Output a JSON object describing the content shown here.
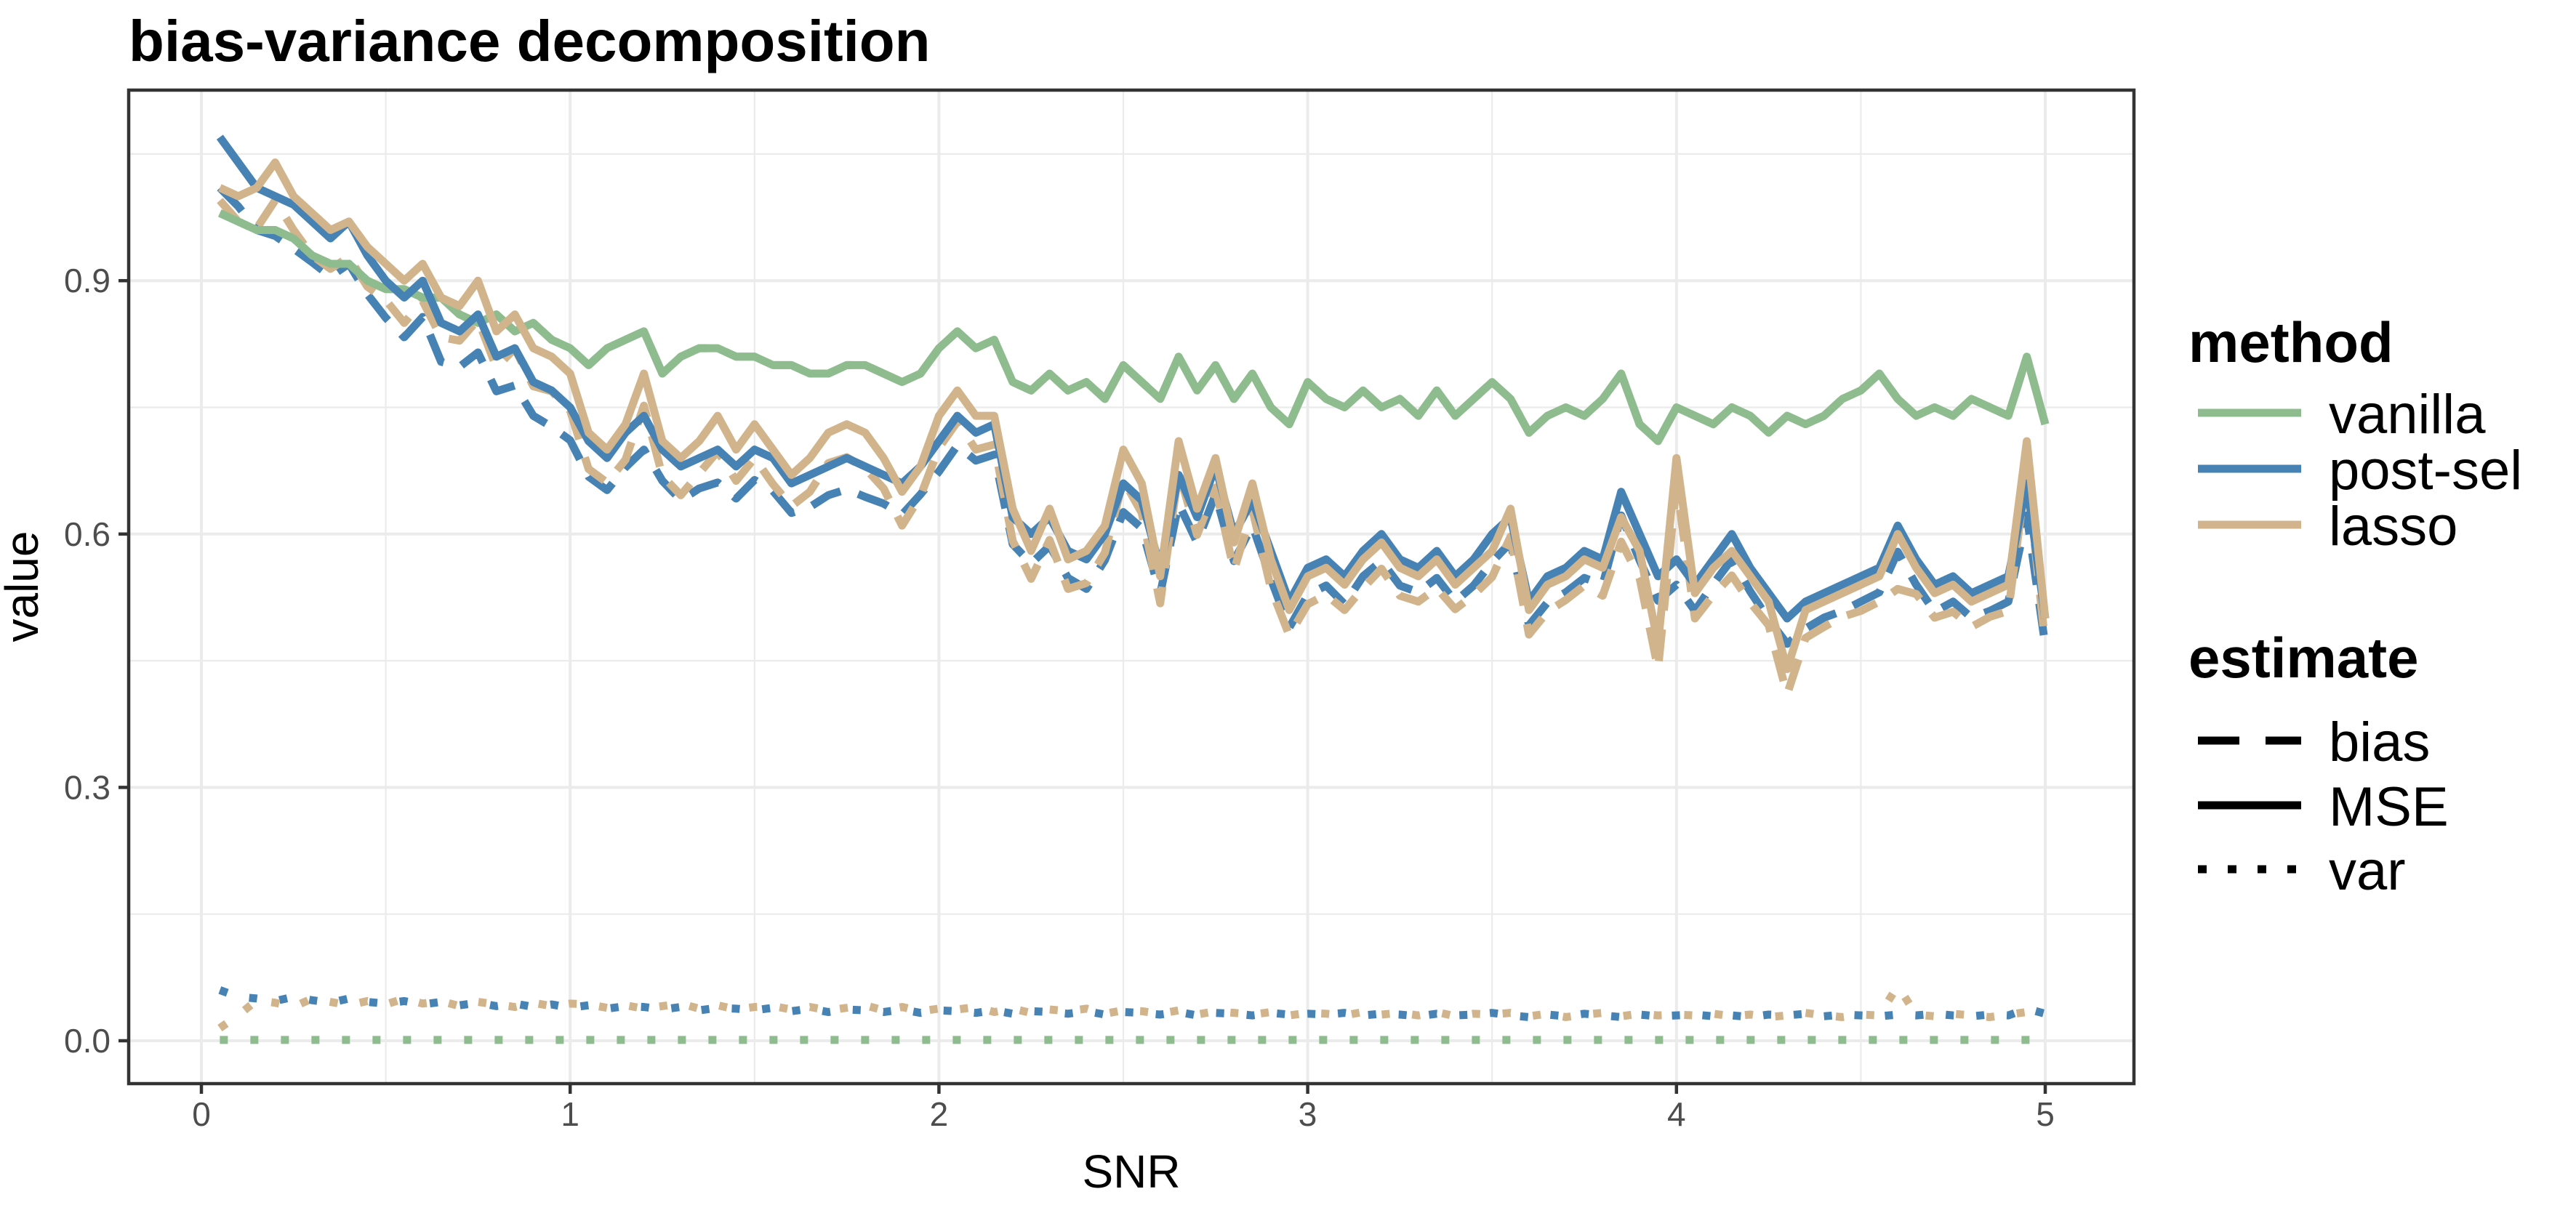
{
  "title": "bias-variance decomposition",
  "axes": {
    "x": {
      "label": "SNR",
      "tick_values": [
        0,
        1,
        2,
        3,
        4,
        5
      ],
      "tick_labels": [
        "0",
        "1",
        "2",
        "3",
        "4",
        "5"
      ],
      "minor_ticks": [
        0.5,
        1.5,
        2.5,
        3.5,
        4.5
      ],
      "range": [
        -0.2,
        5.24
      ]
    },
    "y": {
      "label": "value",
      "tick_values": [
        0,
        0.3,
        0.6,
        0.9
      ],
      "tick_labels": [
        "0.0",
        "0.3",
        "0.6",
        "0.9"
      ],
      "minor_ticks": [
        0.15,
        0.45,
        0.75,
        1.05
      ],
      "range": [
        -0.05,
        1.126
      ]
    },
    "grid": "on",
    "panel_border_color": "#333333",
    "grid_color": "#ebebeb",
    "tick_label_color": "#4d4d4d"
  },
  "legend": {
    "position": "right",
    "method": {
      "title": "method",
      "items": [
        {
          "label": "vanilla",
          "color": "#8FBC8F"
        },
        {
          "label": "post-sel",
          "color": "#4682B4"
        },
        {
          "label": "lasso",
          "color": "#D2B48C"
        }
      ]
    },
    "estimate": {
      "title": "estimate",
      "items": [
        {
          "label": "bias",
          "linestyle": "dashed"
        },
        {
          "label": "MSE",
          "linestyle": "solid"
        },
        {
          "label": "var",
          "linestyle": "dotted"
        }
      ]
    }
  },
  "chart_data": {
    "type": "line",
    "title": "bias-variance decomposition",
    "xlabel": "SNR",
    "ylabel": "value",
    "xlim": [
      -0.2,
      5.24
    ],
    "ylim": [
      -0.05,
      1.126
    ],
    "x": [
      0.05,
      0.1,
      0.15,
      0.2,
      0.25,
      0.3,
      0.35,
      0.4,
      0.45,
      0.5,
      0.55,
      0.6,
      0.65,
      0.7,
      0.75,
      0.8,
      0.85,
      0.9,
      0.95,
      1,
      1.05,
      1.1,
      1.15,
      1.2,
      1.25,
      1.3,
      1.35,
      1.4,
      1.45,
      1.5,
      1.55,
      1.6,
      1.65,
      1.7,
      1.75,
      1.8,
      1.85,
      1.9,
      1.95,
      2,
      2.05,
      2.1,
      2.15,
      2.2,
      2.25,
      2.3,
      2.35,
      2.4,
      2.45,
      2.5,
      2.55,
      2.6,
      2.65,
      2.7,
      2.75,
      2.8,
      2.85,
      2.9,
      2.95,
      3,
      3.05,
      3.1,
      3.15,
      3.2,
      3.25,
      3.3,
      3.35,
      3.4,
      3.45,
      3.5,
      3.55,
      3.6,
      3.65,
      3.7,
      3.75,
      3.8,
      3.85,
      3.9,
      3.95,
      4,
      4.05,
      4.1,
      4.15,
      4.2,
      4.25,
      4.3,
      4.35,
      4.4,
      4.45,
      4.5,
      4.55,
      4.6,
      4.65,
      4.7,
      4.75,
      4.8,
      4.85,
      4.9,
      4.95,
      5
    ],
    "series": [
      {
        "method": "vanilla",
        "estimate": "bias",
        "linestyle": "dashed",
        "color": "#8FBC8F",
        "values": [
          0.98,
          0.97,
          0.96,
          0.96,
          0.95,
          0.93,
          0.92,
          0.92,
          0.9,
          0.89,
          0.89,
          0.88,
          0.88,
          0.86,
          0.85,
          0.86,
          0.84,
          0.85,
          0.83,
          0.82,
          0.8,
          0.82,
          0.83,
          0.84,
          0.79,
          0.81,
          0.82,
          0.82,
          0.81,
          0.81,
          0.8,
          0.8,
          0.79,
          0.79,
          0.8,
          0.8,
          0.79,
          0.78,
          0.79,
          0.82,
          0.84,
          0.82,
          0.83,
          0.78,
          0.77,
          0.79,
          0.77,
          0.78,
          0.76,
          0.8,
          0.78,
          0.76,
          0.81,
          0.77,
          0.8,
          0.76,
          0.79,
          0.75,
          0.73,
          0.78,
          0.76,
          0.75,
          0.77,
          0.75,
          0.76,
          0.74,
          0.77,
          0.74,
          0.76,
          0.78,
          0.76,
          0.72,
          0.74,
          0.75,
          0.74,
          0.76,
          0.79,
          0.73,
          0.71,
          0.75,
          0.74,
          0.73,
          0.75,
          0.74,
          0.72,
          0.74,
          0.73,
          0.74,
          0.76,
          0.77,
          0.79,
          0.76,
          0.74,
          0.75,
          0.74,
          0.76,
          0.75,
          0.74,
          0.81,
          0.73
        ]
      },
      {
        "method": "post-sel",
        "estimate": "bias",
        "linestyle": "dashed",
        "color": "#4682B4",
        "values": [
          1.01,
          0.988,
          0.96,
          0.953,
          0.938,
          0.922,
          0.905,
          0.92,
          0.884,
          0.856,
          0.833,
          0.857,
          0.804,
          0.798,
          0.815,
          0.769,
          0.776,
          0.74,
          0.727,
          0.711,
          0.668,
          0.652,
          0.679,
          0.7,
          0.663,
          0.64,
          0.654,
          0.661,
          0.642,
          0.664,
          0.651,
          0.625,
          0.632,
          0.646,
          0.653,
          0.644,
          0.636,
          0.623,
          0.647,
          0.674,
          0.705,
          0.687,
          0.694,
          0.588,
          0.565,
          0.586,
          0.548,
          0.535,
          0.569,
          0.626,
          0.607,
          0.529,
          0.636,
          0.59,
          0.647,
          0.568,
          0.61,
          0.547,
          0.489,
          0.528,
          0.539,
          0.517,
          0.55,
          0.568,
          0.539,
          0.531,
          0.548,
          0.52,
          0.539,
          0.567,
          0.59,
          0.492,
          0.519,
          0.531,
          0.548,
          0.54,
          0.622,
          0.569,
          0.521,
          0.54,
          0.509,
          0.541,
          0.57,
          0.532,
          0.499,
          0.47,
          0.488,
          0.501,
          0.509,
          0.52,
          0.531,
          0.579,
          0.54,
          0.508,
          0.52,
          0.501,
          0.509,
          0.52,
          0.622,
          0.468
        ]
      },
      {
        "method": "lasso",
        "estimate": "bias",
        "linestyle": "dashed",
        "color": "#D2B48C",
        "values": [
          0.995,
          0.97,
          0.962,
          0.995,
          0.96,
          0.93,
          0.914,
          0.928,
          0.893,
          0.877,
          0.85,
          0.876,
          0.833,
          0.829,
          0.854,
          0.797,
          0.82,
          0.775,
          0.769,
          0.746,
          0.677,
          0.661,
          0.688,
          0.752,
          0.669,
          0.646,
          0.672,
          0.698,
          0.663,
          0.69,
          0.659,
          0.633,
          0.65,
          0.684,
          0.691,
          0.678,
          0.654,
          0.61,
          0.645,
          0.702,
          0.733,
          0.7,
          0.706,
          0.592,
          0.547,
          0.593,
          0.535,
          0.542,
          0.578,
          0.664,
          0.625,
          0.518,
          0.674,
          0.599,
          0.655,
          0.557,
          0.629,
          0.536,
          0.48,
          0.517,
          0.528,
          0.51,
          0.536,
          0.559,
          0.527,
          0.52,
          0.536,
          0.511,
          0.528,
          0.549,
          0.597,
          0.481,
          0.508,
          0.522,
          0.539,
          0.527,
          0.591,
          0.548,
          0.44,
          0.659,
          0.5,
          0.528,
          0.551,
          0.519,
          0.492,
          0.41,
          0.477,
          0.49,
          0.502,
          0.509,
          0.52,
          0.535,
          0.529,
          0.501,
          0.508,
          0.49,
          0.502,
          0.509,
          0.676,
          0.47
        ]
      },
      {
        "method": "vanilla",
        "estimate": "MSE",
        "linestyle": "solid",
        "color": "#8FBC8F",
        "values": [
          0.98,
          0.97,
          0.96,
          0.96,
          0.95,
          0.93,
          0.92,
          0.92,
          0.9,
          0.89,
          0.89,
          0.88,
          0.88,
          0.86,
          0.85,
          0.86,
          0.84,
          0.85,
          0.83,
          0.82,
          0.8,
          0.82,
          0.83,
          0.84,
          0.79,
          0.81,
          0.82,
          0.82,
          0.81,
          0.81,
          0.8,
          0.8,
          0.79,
          0.79,
          0.8,
          0.8,
          0.79,
          0.78,
          0.79,
          0.82,
          0.84,
          0.82,
          0.83,
          0.78,
          0.77,
          0.79,
          0.77,
          0.78,
          0.76,
          0.8,
          0.78,
          0.76,
          0.81,
          0.77,
          0.8,
          0.76,
          0.79,
          0.75,
          0.73,
          0.78,
          0.76,
          0.75,
          0.77,
          0.75,
          0.76,
          0.74,
          0.77,
          0.74,
          0.76,
          0.78,
          0.76,
          0.72,
          0.74,
          0.75,
          0.74,
          0.76,
          0.79,
          0.73,
          0.71,
          0.75,
          0.74,
          0.73,
          0.75,
          0.74,
          0.72,
          0.74,
          0.73,
          0.74,
          0.76,
          0.77,
          0.79,
          0.76,
          0.74,
          0.75,
          0.74,
          0.76,
          0.75,
          0.74,
          0.81,
          0.73
        ]
      },
      {
        "method": "post-sel",
        "estimate": "MSE",
        "linestyle": "solid",
        "color": "#4682B4",
        "values": [
          1.07,
          1.04,
          1.01,
          1.0,
          0.99,
          0.97,
          0.95,
          0.97,
          0.93,
          0.9,
          0.88,
          0.9,
          0.85,
          0.84,
          0.86,
          0.81,
          0.82,
          0.78,
          0.77,
          0.75,
          0.71,
          0.69,
          0.72,
          0.74,
          0.7,
          0.68,
          0.69,
          0.7,
          0.68,
          0.7,
          0.69,
          0.66,
          0.67,
          0.68,
          0.69,
          0.68,
          0.67,
          0.66,
          0.68,
          0.71,
          0.74,
          0.72,
          0.73,
          0.62,
          0.6,
          0.62,
          0.58,
          0.57,
          0.6,
          0.66,
          0.64,
          0.56,
          0.67,
          0.62,
          0.68,
          0.6,
          0.64,
          0.58,
          0.52,
          0.56,
          0.57,
          0.55,
          0.58,
          0.6,
          0.57,
          0.56,
          0.58,
          0.55,
          0.57,
          0.6,
          0.62,
          0.52,
          0.55,
          0.56,
          0.58,
          0.57,
          0.65,
          0.6,
          0.55,
          0.57,
          0.54,
          0.57,
          0.6,
          0.56,
          0.53,
          0.5,
          0.52,
          0.53,
          0.54,
          0.55,
          0.56,
          0.61,
          0.57,
          0.54,
          0.55,
          0.53,
          0.54,
          0.55,
          0.66,
          0.5
        ]
      },
      {
        "method": "lasso",
        "estimate": "MSE",
        "linestyle": "solid",
        "color": "#D2B48C",
        "values": [
          1.01,
          1.0,
          1.01,
          1.04,
          1.0,
          0.98,
          0.96,
          0.97,
          0.94,
          0.92,
          0.9,
          0.92,
          0.88,
          0.87,
          0.9,
          0.84,
          0.86,
          0.82,
          0.81,
          0.79,
          0.72,
          0.7,
          0.73,
          0.79,
          0.71,
          0.69,
          0.71,
          0.74,
          0.7,
          0.73,
          0.7,
          0.67,
          0.69,
          0.72,
          0.73,
          0.72,
          0.69,
          0.65,
          0.68,
          0.74,
          0.77,
          0.74,
          0.74,
          0.63,
          0.58,
          0.63,
          0.57,
          0.58,
          0.61,
          0.7,
          0.66,
          0.55,
          0.71,
          0.63,
          0.69,
          0.59,
          0.66,
          0.57,
          0.51,
          0.55,
          0.56,
          0.54,
          0.57,
          0.59,
          0.56,
          0.55,
          0.57,
          0.54,
          0.56,
          0.58,
          0.63,
          0.51,
          0.54,
          0.55,
          0.57,
          0.56,
          0.62,
          0.58,
          0.47,
          0.69,
          0.53,
          0.56,
          0.58,
          0.55,
          0.52,
          0.44,
          0.51,
          0.52,
          0.53,
          0.54,
          0.55,
          0.6,
          0.56,
          0.53,
          0.54,
          0.52,
          0.53,
          0.54,
          0.71,
          0.5
        ]
      },
      {
        "method": "vanilla",
        "estimate": "var",
        "linestyle": "dotted",
        "color": "#8FBC8F",
        "values": [
          0.001,
          0.001,
          0.001,
          0.001,
          0.001,
          0.001,
          0.001,
          0.001,
          0.001,
          0.001,
          0.001,
          0.001,
          0.001,
          0.001,
          0.001,
          0.001,
          0.001,
          0.001,
          0.001,
          0.001,
          0.001,
          0.001,
          0.001,
          0.001,
          0.001,
          0.001,
          0.001,
          0.001,
          0.001,
          0.001,
          0.001,
          0.001,
          0.001,
          0.001,
          0.001,
          0.001,
          0.001,
          0.001,
          0.001,
          0.001,
          0.001,
          0.001,
          0.001,
          0.001,
          0.001,
          0.001,
          0.001,
          0.001,
          0.001,
          0.001,
          0.001,
          0.001,
          0.001,
          0.001,
          0.001,
          0.001,
          0.001,
          0.001,
          0.001,
          0.001,
          0.001,
          0.001,
          0.001,
          0.001,
          0.001,
          0.001,
          0.001,
          0.001,
          0.001,
          0.001,
          0.001,
          0.001,
          0.001,
          0.001,
          0.001,
          0.001,
          0.001,
          0.001,
          0.001,
          0.001,
          0.001,
          0.001,
          0.001,
          0.001,
          0.001,
          0.001,
          0.001,
          0.001,
          0.001,
          0.001,
          0.001,
          0.001,
          0.001,
          0.001,
          0.001,
          0.001,
          0.001,
          0.001,
          0.001,
          0.001
        ]
      },
      {
        "method": "post-sel",
        "estimate": "var",
        "linestyle": "dotted",
        "color": "#4682B4",
        "values": [
          0.06,
          0.052,
          0.05,
          0.047,
          0.052,
          0.048,
          0.045,
          0.05,
          0.046,
          0.044,
          0.047,
          0.043,
          0.046,
          0.042,
          0.045,
          0.041,
          0.044,
          0.04,
          0.043,
          0.039,
          0.042,
          0.038,
          0.041,
          0.04,
          0.037,
          0.04,
          0.036,
          0.039,
          0.038,
          0.036,
          0.039,
          0.035,
          0.038,
          0.034,
          0.037,
          0.036,
          0.034,
          0.037,
          0.033,
          0.036,
          0.035,
          0.033,
          0.036,
          0.032,
          0.035,
          0.034,
          0.032,
          0.035,
          0.031,
          0.034,
          0.033,
          0.031,
          0.034,
          0.03,
          0.033,
          0.032,
          0.03,
          0.033,
          0.031,
          0.032,
          0.031,
          0.033,
          0.03,
          0.032,
          0.031,
          0.029,
          0.032,
          0.03,
          0.031,
          0.033,
          0.03,
          0.028,
          0.031,
          0.029,
          0.032,
          0.03,
          0.028,
          0.031,
          0.029,
          0.03,
          0.031,
          0.029,
          0.03,
          0.028,
          0.031,
          0.03,
          0.032,
          0.029,
          0.031,
          0.03,
          0.029,
          0.031,
          0.03,
          0.032,
          0.03,
          0.029,
          0.031,
          0.03,
          0.038,
          0.032
        ]
      },
      {
        "method": "lasso",
        "estimate": "var",
        "linestyle": "dotted",
        "color": "#D2B48C",
        "values": [
          0.015,
          0.03,
          0.048,
          0.045,
          0.04,
          0.05,
          0.046,
          0.042,
          0.047,
          0.043,
          0.05,
          0.044,
          0.047,
          0.041,
          0.046,
          0.043,
          0.04,
          0.045,
          0.041,
          0.044,
          0.043,
          0.039,
          0.042,
          0.038,
          0.041,
          0.044,
          0.038,
          0.042,
          0.037,
          0.04,
          0.041,
          0.037,
          0.04,
          0.036,
          0.039,
          0.042,
          0.036,
          0.04,
          0.035,
          0.038,
          0.037,
          0.04,
          0.034,
          0.038,
          0.033,
          0.037,
          0.035,
          0.038,
          0.032,
          0.036,
          0.035,
          0.032,
          0.036,
          0.031,
          0.035,
          0.033,
          0.031,
          0.034,
          0.03,
          0.033,
          0.032,
          0.03,
          0.034,
          0.031,
          0.033,
          0.03,
          0.034,
          0.029,
          0.032,
          0.031,
          0.033,
          0.029,
          0.032,
          0.028,
          0.031,
          0.033,
          0.029,
          0.032,
          0.03,
          0.031,
          0.03,
          0.032,
          0.029,
          0.031,
          0.028,
          0.03,
          0.033,
          0.03,
          0.028,
          0.031,
          0.03,
          0.065,
          0.031,
          0.029,
          0.032,
          0.03,
          0.028,
          0.031,
          0.034,
          0.03
        ]
      }
    ]
  }
}
